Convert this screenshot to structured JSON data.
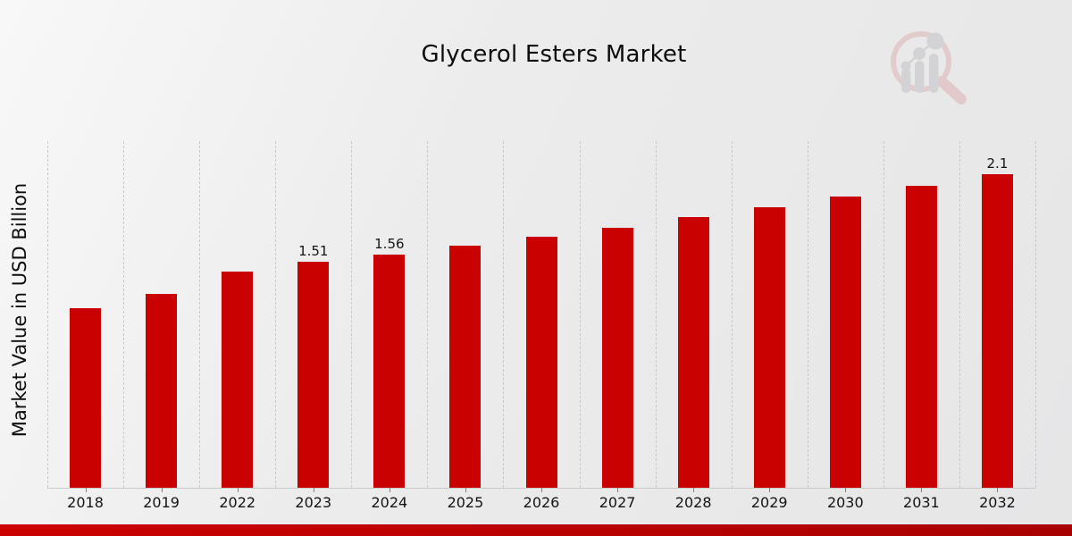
{
  "title": "Glycerol Esters Market",
  "y_axis_label": "Market Value in USD Billion",
  "watermark_icon": "magnifying-glass-bar-chart-logo",
  "colors": {
    "bar": "#c90201",
    "strip_left": "#cb0101",
    "strip_right": "#a80101",
    "gridline": "#c3c3c3",
    "logo_ring": "#dcaeae",
    "logo_gray": "#bfbfc4"
  },
  "chart_data": {
    "type": "bar",
    "title": "Glycerol Esters Market",
    "xlabel": "",
    "ylabel": "Market Value in USD Billion",
    "categories": [
      "2018",
      "2019",
      "2022",
      "2023",
      "2024",
      "2025",
      "2026",
      "2027",
      "2028",
      "2029",
      "2030",
      "2031",
      "2032"
    ],
    "values": [
      1.2,
      1.3,
      1.45,
      1.51,
      1.56,
      1.62,
      1.68,
      1.74,
      1.81,
      1.88,
      1.95,
      2.02,
      2.1
    ],
    "value_labels": [
      "",
      "",
      "",
      "1.51",
      "1.56",
      "",
      "",
      "",
      "",
      "",
      "",
      "",
      "2.1"
    ],
    "ylim": [
      0,
      2.32
    ],
    "y_tick_labels_shown": false,
    "grid": "vertical-dashed",
    "legend": "none",
    "bar_color": "#c90201"
  }
}
